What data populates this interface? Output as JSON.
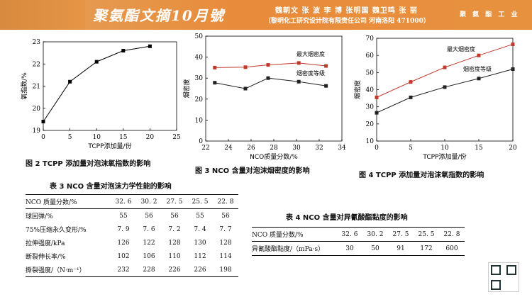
{
  "banner": {
    "title": "聚氨酯文摘10月號",
    "authors": "魏朝文  张 波  李 博  张明国  魏卫鸣  张 丽",
    "affiliation": "（黎明化工研究设计院有限责任公司  河南洛阳 471000）",
    "journal": "聚 氨 酯 工 业"
  },
  "fig2": {
    "caption": "图 2   TCPP 添加量对泡沫氧指数的影响",
    "chart_data": {
      "type": "line",
      "xlabel": "TCPP添加量/份",
      "ylabel": "氧指数/%",
      "xlim": [
        0,
        25
      ],
      "ylim": [
        19,
        23
      ],
      "xticks": [
        "0",
        "5",
        "10",
        "15",
        "20",
        "25"
      ],
      "yticks": [
        "19",
        "20",
        "21",
        "22",
        "23"
      ],
      "x": [
        0,
        5,
        10,
        15,
        20
      ],
      "series": [
        {
          "values": [
            19.4,
            21.2,
            22.1,
            22.6,
            22.8
          ]
        }
      ]
    }
  },
  "fig3": {
    "caption": "图 3   NCO 含量对泡沫烟密度的影响",
    "chart_data": {
      "type": "line",
      "xlabel": "NCO质量分数/%",
      "ylabel": "烟密度",
      "xlim": [
        22,
        34
      ],
      "ylim": [
        0,
        50
      ],
      "xticks": [
        "22",
        "24",
        "26",
        "28",
        "30",
        "32",
        "34"
      ],
      "yticks": [
        "0",
        "10",
        "20",
        "30",
        "40",
        "50"
      ],
      "x": [
        22.8,
        25.5,
        27.5,
        30.2,
        32.6
      ],
      "series": [
        {
          "name": "最大烟密度",
          "color": "#c0392b",
          "values": [
            35,
            35.2,
            36.3,
            37.2,
            35.8
          ]
        },
        {
          "name": "烟密度等级",
          "color": "#222222",
          "values": [
            27.8,
            25,
            30,
            28.3,
            26.3
          ]
        }
      ]
    }
  },
  "fig4": {
    "caption": "图 4   TCPP 添加量对泡沫氧指数的影响",
    "chart_data": {
      "type": "line",
      "xlabel": "TCPP添加量/份",
      "ylabel": "烟密度",
      "xlim": [
        0,
        20
      ],
      "ylim": [
        10,
        70
      ],
      "xticks": [
        "0",
        "5",
        "10",
        "15",
        "20"
      ],
      "yticks": [
        "10",
        "20",
        "30",
        "40",
        "50",
        "60",
        "70"
      ],
      "x": [
        0,
        5,
        10,
        15,
        20
      ],
      "series": [
        {
          "name": "最大烟密度",
          "color": "#c0392b",
          "values": [
            35.5,
            44.5,
            53,
            60,
            66.5
          ]
        },
        {
          "name": "烟密度等级",
          "color": "#222222",
          "values": [
            26.5,
            35.5,
            41.5,
            46.5,
            52
          ]
        }
      ]
    }
  },
  "table3": {
    "title": "表 3   NCO 含量对泡沫力学性能的影响",
    "header": [
      "NCO 质量分数/%",
      "32. 6",
      "30. 2",
      "27. 5",
      "25. 5",
      "22. 8"
    ],
    "rows": [
      [
        "球回弹/%",
        "55",
        "56",
        "56",
        "55",
        "56"
      ],
      [
        "75%压缩永久变形/%",
        "7. 9",
        "7. 6",
        "7. 2",
        "7. 4",
        "7. 7"
      ],
      [
        "拉伸强度/kPa",
        "126",
        "122",
        "128",
        "130",
        "128"
      ],
      [
        "断裂伸长率/%",
        "102",
        "106",
        "110",
        "112",
        "114"
      ],
      [
        "撕裂强度/（N·m⁻¹）",
        "232",
        "228",
        "226",
        "226",
        "198"
      ]
    ]
  },
  "table4": {
    "title": "表 4   NCO 含量对异氰酸酯黏度的影响",
    "header": [
      "NCO 质量分数/%",
      "32. 6",
      "30. 2",
      "27. 5",
      "25. 5",
      "22. 8"
    ],
    "rows": [
      [
        "异氰酸酯黏度/（mPa·s）",
        "30",
        "50",
        "91",
        "172",
        "600"
      ]
    ]
  }
}
